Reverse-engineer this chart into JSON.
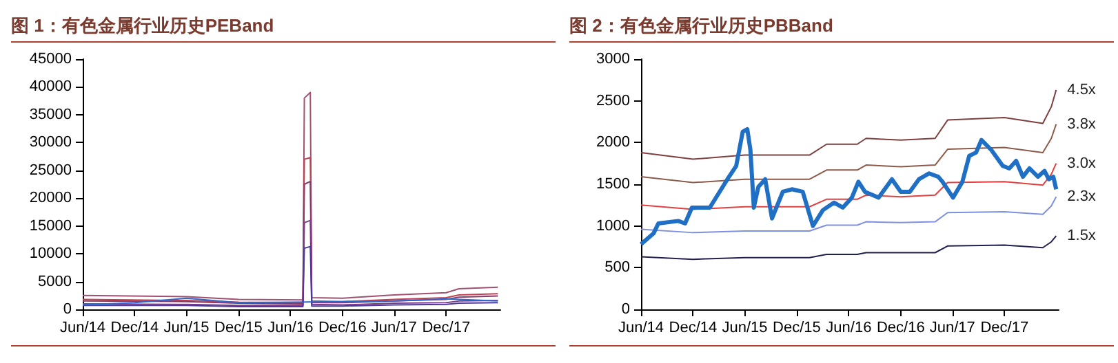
{
  "chart_data": [
    {
      "type": "line",
      "title": "图 1：有色金属行业历史PEBand",
      "marker": "none",
      "xlim": [
        "2014-06",
        "2018-06-10"
      ],
      "ylim": [
        0,
        45000
      ],
      "yticks": [
        0,
        5000,
        10000,
        15000,
        20000,
        25000,
        30000,
        35000,
        40000,
        45000
      ],
      "xticks": [
        {
          "value": "2014-06",
          "label": "Jun/14"
        },
        {
          "value": "2014-12",
          "label": "Dec/14"
        },
        {
          "value": "2015-06",
          "label": "Jun/15"
        },
        {
          "value": "2015-12",
          "label": "Dec/15"
        },
        {
          "value": "2016-06",
          "label": "Jun/16"
        },
        {
          "value": "2016-12",
          "label": "Dec/16"
        },
        {
          "value": "2017-06",
          "label": "Jun/17"
        },
        {
          "value": "2017-12",
          "label": "Dec/17"
        }
      ],
      "series": [
        {
          "color": "#a05070",
          "x": [
            "2014-06-01",
            "2015-06-01",
            "2015-12-01",
            "2016-07-15",
            "2016-07-20",
            "2016-08-10",
            "2016-08-15",
            "2016-12-01",
            "2017-06-01",
            "2017-12-01",
            "2018-01-15",
            "2018-06-01"
          ],
          "values": [
            2500,
            2300,
            1800,
            1700,
            38000,
            39000,
            2100,
            2000,
            2600,
            3000,
            3700,
            4000
          ]
        },
        {
          "color": "#c04050",
          "x": [
            "2014-06-01",
            "2015-06-01",
            "2015-12-01",
            "2016-07-15",
            "2016-07-20",
            "2016-08-10",
            "2016-08-15",
            "2016-12-01",
            "2017-06-01",
            "2017-12-01",
            "2018-01-15",
            "2018-06-01"
          ],
          "values": [
            1800,
            1600,
            1300,
            1200,
            27000,
            27300,
            1500,
            1400,
            1800,
            2100,
            2600,
            2800
          ]
        },
        {
          "color": "#8a3a6a",
          "x": [
            "2014-06-01",
            "2015-06-01",
            "2015-12-01",
            "2016-07-15",
            "2016-07-20",
            "2016-08-10",
            "2016-08-15",
            "2016-12-01",
            "2017-06-01",
            "2017-12-01",
            "2018-01-15",
            "2018-06-01"
          ],
          "values": [
            1500,
            1400,
            1100,
            1000,
            22500,
            23000,
            1200,
            1200,
            1500,
            1800,
            2200,
            2400
          ]
        },
        {
          "color": "#7a3a8a",
          "x": [
            "2014-06-01",
            "2015-06-01",
            "2015-12-01",
            "2016-07-15",
            "2016-07-20",
            "2016-08-10",
            "2016-08-15",
            "2016-12-01",
            "2017-06-01",
            "2017-12-01",
            "2018-01-15",
            "2018-06-01"
          ],
          "values": [
            1000,
            900,
            700,
            700,
            15600,
            16000,
            900,
            800,
            1100,
            1200,
            1500,
            1600
          ]
        },
        {
          "color": "#4a3a9a",
          "x": [
            "2014-06-01",
            "2015-06-01",
            "2015-12-01",
            "2016-07-15",
            "2016-07-20",
            "2016-08-10",
            "2016-08-15",
            "2016-12-01",
            "2017-06-01",
            "2017-12-01",
            "2018-01-15",
            "2018-06-01"
          ],
          "values": [
            700,
            700,
            500,
            500,
            11000,
            11300,
            600,
            600,
            800,
            900,
            1100,
            1200
          ]
        },
        {
          "color": "#2a6ad0",
          "x": [
            "2014-06-01",
            "2014-12-01",
            "2015-06-01",
            "2015-12-01",
            "2016-06-01",
            "2016-12-01",
            "2017-06-01",
            "2017-12-01",
            "2018-06-01"
          ],
          "values": [
            800,
            1200,
            2000,
            1200,
            1300,
            1400,
            1500,
            1900,
            1500
          ]
        }
      ]
    },
    {
      "type": "line",
      "title": "图 2：有色金属行业历史PBBand",
      "marker": "none",
      "xlim": [
        "2014-06",
        "2018-06-10"
      ],
      "ylim": [
        0,
        3000
      ],
      "yticks": [
        0,
        500,
        1000,
        1500,
        2000,
        2500,
        3000
      ],
      "xticks": [
        {
          "value": "2014-06",
          "label": "Jun/14"
        },
        {
          "value": "2014-12",
          "label": "Dec/14"
        },
        {
          "value": "2015-06",
          "label": "Jun/15"
        },
        {
          "value": "2015-12",
          "label": "Dec/15"
        },
        {
          "value": "2016-06",
          "label": "Jun/16"
        },
        {
          "value": "2016-12",
          "label": "Dec/16"
        },
        {
          "value": "2017-06",
          "label": "Jun/17"
        },
        {
          "value": "2017-12",
          "label": "Dec/17"
        }
      ],
      "series": [
        {
          "name": "4.5x",
          "color": "#7f3f3f",
          "x": [
            "2014-06-01",
            "2014-12-01",
            "2015-06-01",
            "2015-12-01",
            "2016-01-15",
            "2016-03-15",
            "2016-07-01",
            "2016-08-01",
            "2016-12-01",
            "2017-04-01",
            "2017-05-15",
            "2017-12-01",
            "2018-04-15",
            "2018-05-15",
            "2018-06-01"
          ],
          "values": [
            1880,
            1800,
            1850,
            1850,
            1850,
            1980,
            1980,
            2050,
            2030,
            2050,
            2270,
            2300,
            2230,
            2430,
            2630
          ]
        },
        {
          "name": "3.8x",
          "color": "#8c5a4a",
          "x": [
            "2014-06-01",
            "2014-12-01",
            "2015-06-01",
            "2015-12-01",
            "2016-01-15",
            "2016-03-15",
            "2016-07-01",
            "2016-08-01",
            "2016-12-01",
            "2017-04-01",
            "2017-05-15",
            "2017-12-01",
            "2018-04-15",
            "2018-05-15",
            "2018-06-01"
          ],
          "values": [
            1590,
            1520,
            1560,
            1560,
            1560,
            1670,
            1670,
            1730,
            1710,
            1730,
            1920,
            1940,
            1880,
            2050,
            2220
          ]
        },
        {
          "name": "3.0x",
          "color": "#e04040",
          "x": [
            "2014-06-01",
            "2014-12-01",
            "2015-06-01",
            "2015-12-01",
            "2016-01-15",
            "2016-03-15",
            "2016-07-01",
            "2016-08-01",
            "2016-12-01",
            "2017-04-01",
            "2017-05-15",
            "2017-12-01",
            "2018-04-15",
            "2018-05-15",
            "2018-06-01"
          ],
          "values": [
            1250,
            1200,
            1230,
            1230,
            1230,
            1320,
            1320,
            1370,
            1350,
            1370,
            1520,
            1530,
            1490,
            1620,
            1750
          ]
        },
        {
          "name": "2.3x",
          "color": "#7f8fe0",
          "x": [
            "2014-06-01",
            "2014-12-01",
            "2015-06-01",
            "2015-12-01",
            "2016-01-15",
            "2016-03-15",
            "2016-07-01",
            "2016-08-01",
            "2016-12-01",
            "2017-04-01",
            "2017-05-15",
            "2017-12-01",
            "2018-04-15",
            "2018-05-15",
            "2018-06-01"
          ],
          "values": [
            960,
            920,
            940,
            940,
            940,
            1010,
            1010,
            1050,
            1040,
            1050,
            1160,
            1170,
            1140,
            1240,
            1350
          ]
        },
        {
          "name": "1.5x",
          "color": "#202050",
          "x": [
            "2014-06-01",
            "2014-12-01",
            "2015-06-01",
            "2015-12-01",
            "2016-01-15",
            "2016-03-15",
            "2016-07-01",
            "2016-08-01",
            "2016-12-01",
            "2017-04-01",
            "2017-05-15",
            "2017-12-01",
            "2018-04-15",
            "2018-05-15",
            "2018-06-01"
          ],
          "values": [
            630,
            600,
            620,
            620,
            620,
            660,
            660,
            680,
            680,
            680,
            760,
            770,
            740,
            810,
            880
          ]
        },
        {
          "color": "#1f6fc5",
          "x": [
            "2014-06-01",
            "2014-07-15",
            "2014-08-01",
            "2014-10-10",
            "2014-11-03",
            "2014-11-27",
            "2015-01-29",
            "2015-04-01",
            "2015-05-02",
            "2015-05-25",
            "2015-06-10",
            "2015-06-21",
            "2015-07-03",
            "2015-07-19",
            "2015-08-12",
            "2015-09-05",
            "2015-10-13",
            "2015-11-14",
            "2015-12-22",
            "2016-01-27",
            "2016-03-02",
            "2016-04-10",
            "2016-05-11",
            "2016-06-12",
            "2016-07-05",
            "2016-07-28",
            "2016-09-14",
            "2016-10-31",
            "2016-12-01",
            "2017-01-02",
            "2017-02-03",
            "2017-03-11",
            "2017-04-12",
            "2017-04-27",
            "2017-06-03",
            "2017-07-06",
            "2017-07-30",
            "2017-08-23",
            "2017-09-11",
            "2017-10-16",
            "2017-11-25",
            "2017-12-18",
            "2018-01-11",
            "2018-02-04",
            "2018-02-27",
            "2018-03-29",
            "2018-04-21",
            "2018-05-06",
            "2018-05-22",
            "2018-06-01"
          ],
          "values": [
            780,
            910,
            1030,
            1060,
            1030,
            1220,
            1220,
            1560,
            1720,
            2130,
            2160,
            1910,
            1220,
            1470,
            1560,
            1090,
            1410,
            1440,
            1410,
            1000,
            1190,
            1280,
            1220,
            1340,
            1530,
            1410,
            1340,
            1560,
            1410,
            1410,
            1560,
            1630,
            1590,
            1530,
            1340,
            1530,
            1840,
            1880,
            2030,
            1910,
            1720,
            1690,
            1780,
            1590,
            1690,
            1590,
            1660,
            1560,
            1590,
            1440
          ]
        }
      ]
    }
  ]
}
